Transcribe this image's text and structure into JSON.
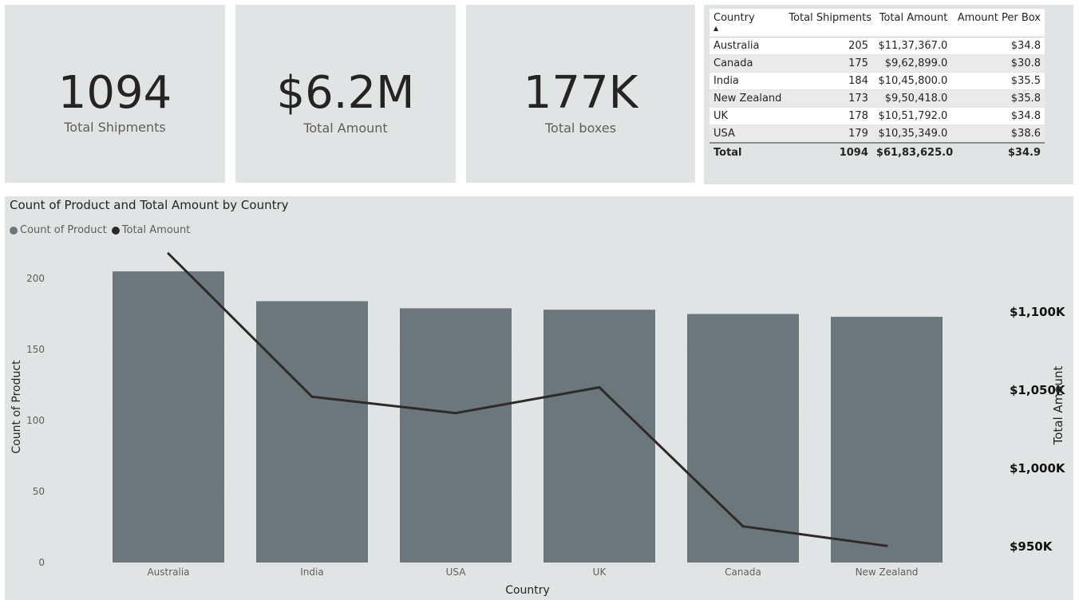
{
  "kpis": [
    {
      "value": "1094",
      "label": "Total Shipments"
    },
    {
      "value": "$6.2M",
      "label": "Total Amount"
    },
    {
      "value": "177K",
      "label": "Total boxes"
    }
  ],
  "table": {
    "headers": [
      "Country",
      "Total Shipments",
      "Total Amount",
      "Amount Per Box"
    ],
    "sort_icon": "sort-ascending-icon",
    "rows": [
      [
        "Australia",
        "205",
        "$11,37,367.0",
        "$34.8"
      ],
      [
        "Canada",
        "175",
        "$9,62,899.0",
        "$30.8"
      ],
      [
        "India",
        "184",
        "$10,45,800.0",
        "$35.5"
      ],
      [
        "New Zealand",
        "173",
        "$9,50,418.0",
        "$35.8"
      ],
      [
        "UK",
        "178",
        "$10,51,792.0",
        "$34.8"
      ],
      [
        "USA",
        "179",
        "$10,35,349.0",
        "$38.6"
      ]
    ],
    "total": [
      "Total",
      "1094",
      "$61,83,625.0",
      "$34.9"
    ]
  },
  "chart": {
    "title": "Count of Product and Total Amount by Country",
    "legend": [
      {
        "label": "Count of Product",
        "color": "#6b777a"
      },
      {
        "label": "Total Amount",
        "color": "#2f2a2a"
      }
    ]
  },
  "chart_data": {
    "type": "bar",
    "title": "Count of Product and Total Amount by Country",
    "xlabel": "Country",
    "ylabel": "Count of Product",
    "y2label": "Total Amount",
    "categories": [
      "Australia",
      "India",
      "USA",
      "UK",
      "Canada",
      "New Zealand"
    ],
    "series": [
      {
        "name": "Count of Product",
        "type": "bar",
        "axis": "left",
        "color": "#6b777a",
        "values": [
          205,
          184,
          179,
          178,
          175,
          173
        ]
      },
      {
        "name": "Total Amount",
        "type": "line",
        "axis": "right",
        "color": "#2f2a2a",
        "values": [
          1137367,
          1045800,
          1035349,
          1051792,
          962899,
          950418
        ]
      }
    ],
    "ylim": [
      0,
      200
    ],
    "yticks": [
      0,
      50,
      100,
      150,
      200
    ],
    "y2ticks": [
      950000,
      1000000,
      1050000,
      1100000
    ],
    "y2tick_labels": [
      "$950K",
      "$1,000K",
      "$1,050K",
      "$1,100K"
    ],
    "grid": true,
    "legend_position": "top-left"
  }
}
